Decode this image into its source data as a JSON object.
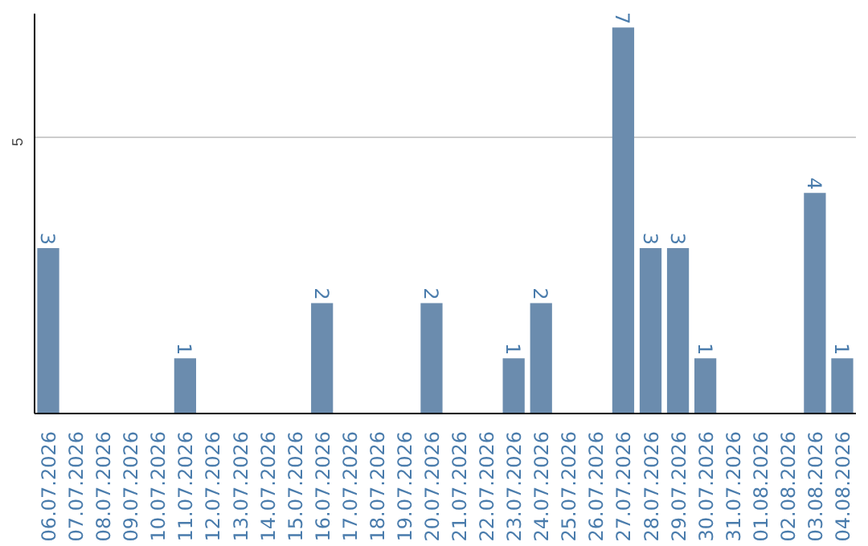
{
  "chart_data": {
    "type": "bar",
    "categories": [
      "06.07.2026",
      "07.07.2026",
      "08.07.2026",
      "09.07.2026",
      "10.07.2026",
      "11.07.2026",
      "12.07.2026",
      "13.07.2026",
      "14.07.2026",
      "15.07.2026",
      "16.07.2026",
      "17.07.2026",
      "18.07.2026",
      "19.07.2026",
      "20.07.2026",
      "21.07.2026",
      "22.07.2026",
      "23.07.2026",
      "24.07.2026",
      "25.07.2026",
      "26.07.2026",
      "27.07.2026",
      "28.07.2026",
      "29.07.2026",
      "30.07.2026",
      "31.07.2026",
      "01.08.2026",
      "02.08.2026",
      "03.08.2026",
      "04.08.2026"
    ],
    "values": [
      3,
      0,
      0,
      0,
      0,
      1,
      0,
      0,
      0,
      0,
      2,
      0,
      0,
      0,
      2,
      0,
      0,
      1,
      2,
      0,
      0,
      7,
      3,
      3,
      1,
      0,
      0,
      0,
      4,
      1
    ],
    "value_labels": [
      "3",
      null,
      null,
      null,
      null,
      "1",
      null,
      null,
      null,
      null,
      "2",
      null,
      null,
      null,
      "2",
      null,
      null,
      "1",
      "2",
      null,
      null,
      "7",
      "3",
      "3",
      "1",
      null,
      null,
      null,
      "4",
      "1"
    ],
    "color": "#6b8cae",
    "ylim": [
      0,
      7.25
    ],
    "yticks": [
      5
    ],
    "grid": "y"
  }
}
